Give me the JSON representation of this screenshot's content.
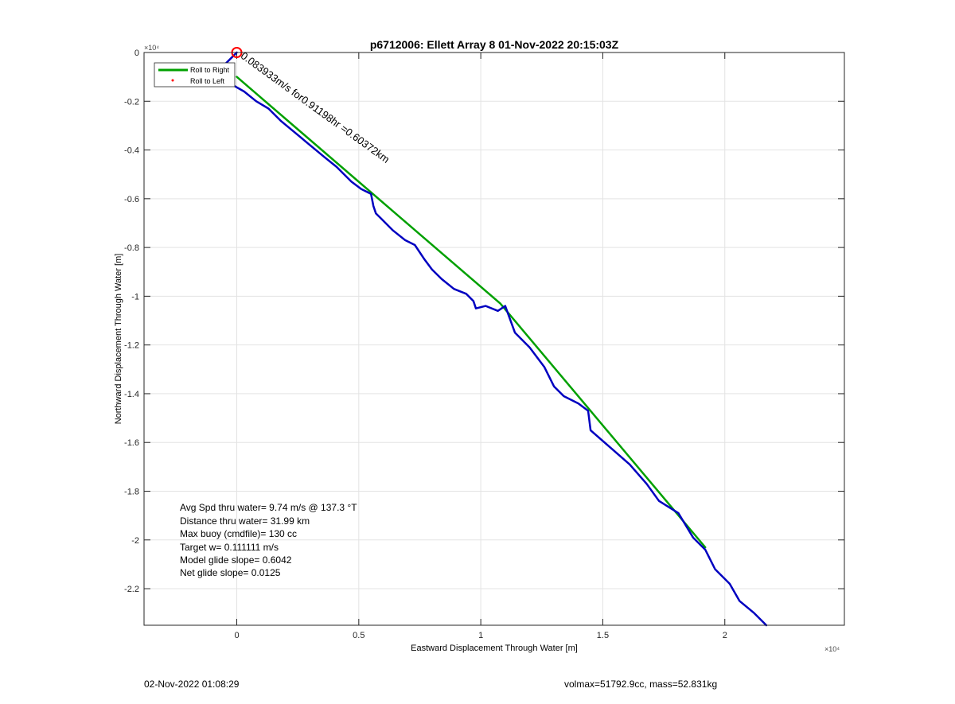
{
  "chart_data": {
    "type": "line",
    "title": "p6712006: Ellett Array 8 01-Nov-2022 20:15:03Z",
    "xlabel": "Eastward Displacement Through Water [m]",
    "ylabel": "Northward Displacement Through Water [m]",
    "x_exponent_label": "×10⁴",
    "y_exponent_label": "×10⁴",
    "xlim": [
      -3800,
      24900
    ],
    "ylim": [
      -23500,
      0
    ],
    "x_ticks": [
      0,
      5000,
      10000,
      15000,
      20000
    ],
    "x_tick_labels": [
      "0",
      "0.5",
      "1",
      "1.5",
      "2"
    ],
    "y_ticks": [
      0,
      -2000,
      -4000,
      -6000,
      -8000,
      -10000,
      -12000,
      -14000,
      -16000,
      -18000,
      -20000,
      -22000
    ],
    "y_tick_labels": [
      "0",
      "-0.2",
      "-0.4",
      "-0.6",
      "-0.8",
      "-1",
      "-1.2",
      "-1.4",
      "-1.6",
      "-1.8",
      "-2",
      "-2.2"
    ],
    "grid": true,
    "legend_position": "top-left",
    "legend": [
      {
        "label": "Roll to Right",
        "marker": "line",
        "color": "#00a000"
      },
      {
        "label": "Roll to Left",
        "marker": "dot",
        "color": "#ff0000"
      }
    ],
    "series": [
      {
        "name": "Roll to Right",
        "color": "#00a000",
        "x": [
          0,
          10800,
          19200
        ],
        "y": [
          -1000,
          -10300,
          -20300
        ]
      },
      {
        "color": "#0000c0",
        "x": [
          0,
          -500,
          -400,
          300,
          800,
          1300,
          1800,
          2400,
          3000,
          3600,
          4100,
          4700,
          5100,
          5500,
          5600,
          5700,
          5900,
          6400,
          6900,
          7300,
          7700,
          8000,
          8400,
          8900,
          9400,
          9700,
          9800,
          10200,
          10700,
          11000,
          11400,
          12000,
          12600,
          13000,
          13400,
          14000,
          14400,
          14500,
          15300,
          16100,
          16800,
          17300,
          18100,
          18700,
          19200,
          19600,
          20200,
          20600,
          21200,
          21700
        ],
        "y": [
          0,
          -500,
          -1200,
          -1600,
          -2000,
          -2300,
          -2800,
          -3300,
          -3800,
          -4300,
          -4700,
          -5300,
          -5600,
          -5800,
          -6300,
          -6600,
          -6800,
          -7300,
          -7700,
          -7900,
          -8500,
          -8900,
          -9300,
          -9700,
          -9900,
          -10200,
          -10500,
          -10400,
          -10600,
          -10400,
          -11500,
          -12100,
          -12900,
          -13700,
          -14100,
          -14400,
          -14700,
          -15500,
          -16200,
          -16900,
          -17700,
          -18400,
          -18900,
          -19900,
          -20400,
          -21200,
          -21800,
          -22500,
          -23000,
          -23500
        ]
      }
    ],
    "start_marker": {
      "x": 0,
      "y": 0,
      "color": "#ff0000"
    },
    "path_annotation": "0.083933m/s for0.91198hr =0.60372km",
    "stats": [
      "Avg Spd thru water=  9.74 m/s @ 137.3 °T",
      "Distance thru water= 31.99 km",
      "Max buoy (cmdfile)= 130 cc",
      "Target w= 0.111111 m/s",
      "Model glide slope= 0.6042",
      "Net glide slope= 0.0125"
    ]
  },
  "footer": {
    "timestamp": "02-Nov-2022 01:08:29",
    "params": "volmax=51792.9cc, mass=52.831kg"
  }
}
